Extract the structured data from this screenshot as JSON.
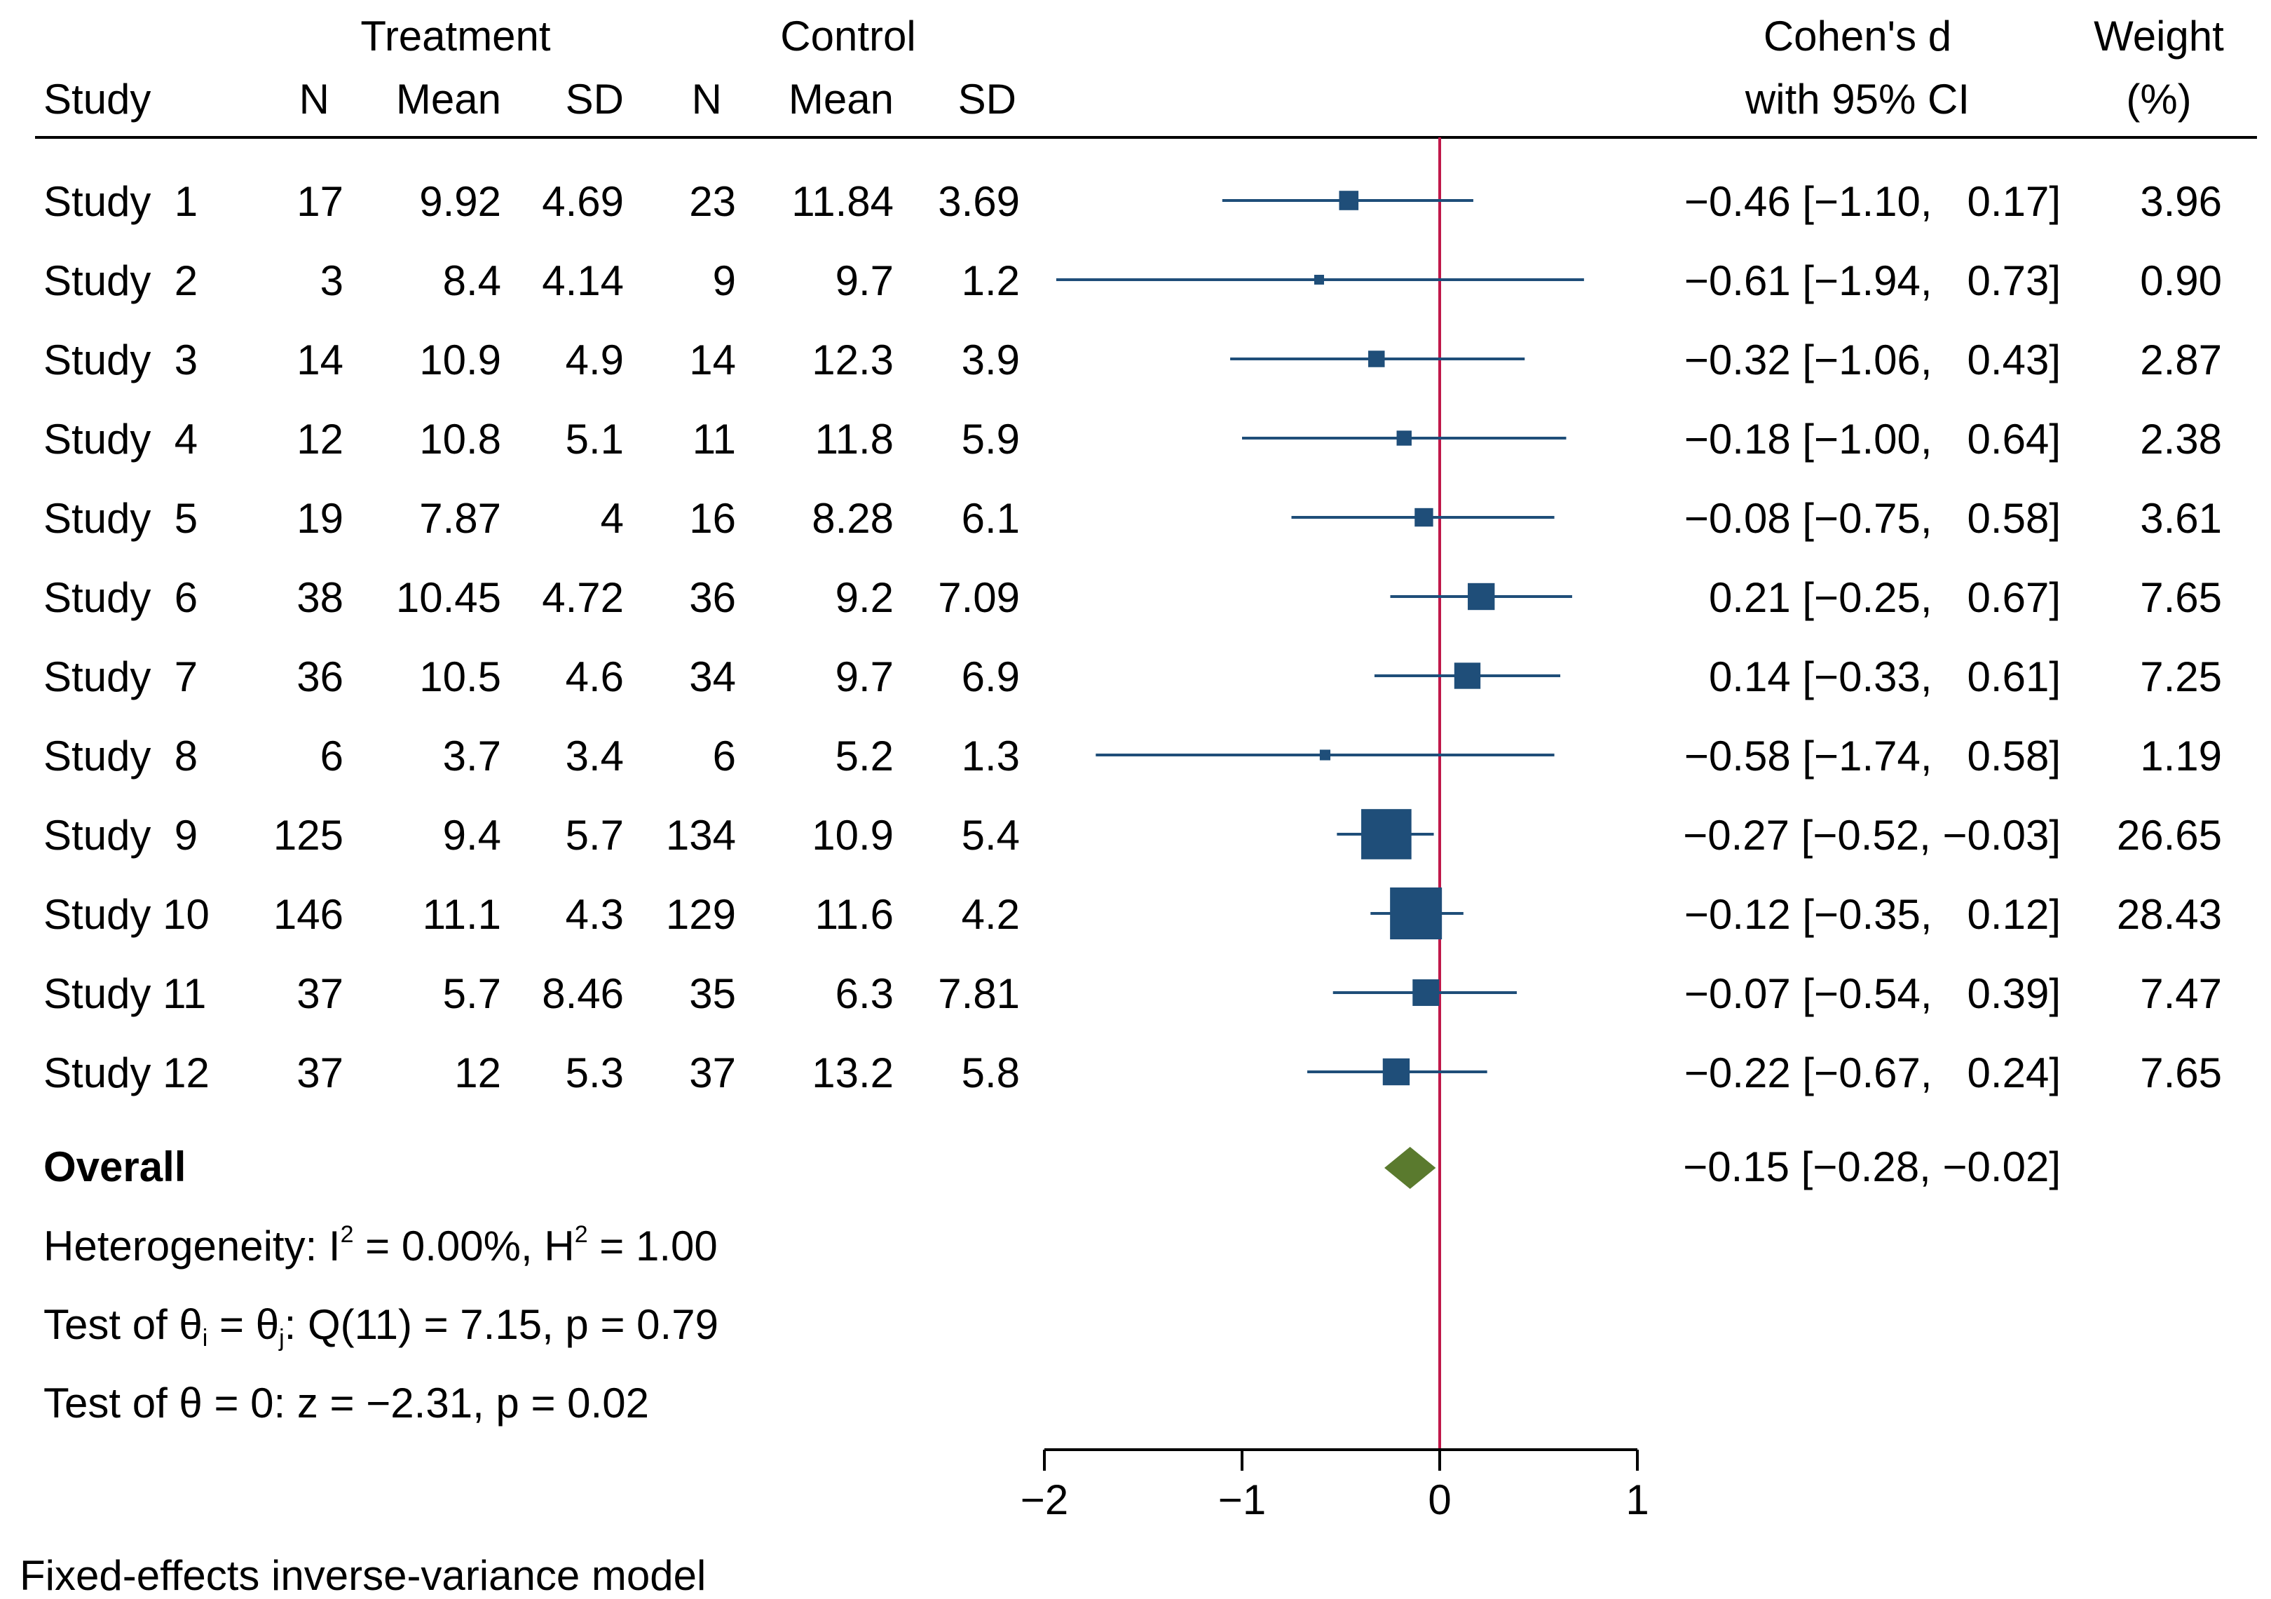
{
  "chart_data": {
    "type": "forest",
    "model_note": "Fixed-effects inverse-variance model",
    "headers": {
      "treatment_group": "Treatment",
      "control_group": "Control",
      "study": "Study",
      "n": "N",
      "mean": "Mean",
      "sd": "SD",
      "effect_line1": "Cohen's d",
      "effect_line2": "with 95% CI",
      "weight_line1": "Weight",
      "weight_line2": "(%)"
    },
    "studies": [
      {
        "label": "Study  1",
        "t_n": "17",
        "t_mean": "9.92",
        "t_sd": "4.69",
        "c_n": "23",
        "c_mean": "11.84",
        "c_sd": "3.69",
        "d": -0.46,
        "lo": -1.1,
        "hi": 0.17,
        "ci_text": "−0.46 [−1.10,   0.17]",
        "weight": 3.96,
        "weight_text": "3.96"
      },
      {
        "label": "Study  2",
        "t_n": "3",
        "t_mean": "8.4",
        "t_sd": "4.14",
        "c_n": "9",
        "c_mean": "9.7",
        "c_sd": "1.2",
        "d": -0.61,
        "lo": -1.94,
        "hi": 0.73,
        "ci_text": "−0.61 [−1.94,   0.73]",
        "weight": 0.9,
        "weight_text": "0.90"
      },
      {
        "label": "Study  3",
        "t_n": "14",
        "t_mean": "10.9",
        "t_sd": "4.9",
        "c_n": "14",
        "c_mean": "12.3",
        "c_sd": "3.9",
        "d": -0.32,
        "lo": -1.06,
        "hi": 0.43,
        "ci_text": "−0.32 [−1.06,   0.43]",
        "weight": 2.87,
        "weight_text": "2.87"
      },
      {
        "label": "Study  4",
        "t_n": "12",
        "t_mean": "10.8",
        "t_sd": "5.1",
        "c_n": "11",
        "c_mean": "11.8",
        "c_sd": "5.9",
        "d": -0.18,
        "lo": -1.0,
        "hi": 0.64,
        "ci_text": "−0.18 [−1.00,   0.64]",
        "weight": 2.38,
        "weight_text": "2.38"
      },
      {
        "label": "Study  5",
        "t_n": "19",
        "t_mean": "7.87",
        "t_sd": "4",
        "c_n": "16",
        "c_mean": "8.28",
        "c_sd": "6.1",
        "d": -0.08,
        "lo": -0.75,
        "hi": 0.58,
        "ci_text": "−0.08 [−0.75,   0.58]",
        "weight": 3.61,
        "weight_text": "3.61"
      },
      {
        "label": "Study  6",
        "t_n": "38",
        "t_mean": "10.45",
        "t_sd": "4.72",
        "c_n": "36",
        "c_mean": "9.2",
        "c_sd": "7.09",
        "d": 0.21,
        "lo": -0.25,
        "hi": 0.67,
        "ci_text": "0.21 [−0.25,   0.67]",
        "weight": 7.65,
        "weight_text": "7.65"
      },
      {
        "label": "Study  7",
        "t_n": "36",
        "t_mean": "10.5",
        "t_sd": "4.6",
        "c_n": "34",
        "c_mean": "9.7",
        "c_sd": "6.9",
        "d": 0.14,
        "lo": -0.33,
        "hi": 0.61,
        "ci_text": "0.14 [−0.33,   0.61]",
        "weight": 7.25,
        "weight_text": "7.25"
      },
      {
        "label": "Study  8",
        "t_n": "6",
        "t_mean": "3.7",
        "t_sd": "3.4",
        "c_n": "6",
        "c_mean": "5.2",
        "c_sd": "1.3",
        "d": -0.58,
        "lo": -1.74,
        "hi": 0.58,
        "ci_text": "−0.58 [−1.74,   0.58]",
        "weight": 1.19,
        "weight_text": "1.19"
      },
      {
        "label": "Study  9",
        "t_n": "125",
        "t_mean": "9.4",
        "t_sd": "5.7",
        "c_n": "134",
        "c_mean": "10.9",
        "c_sd": "5.4",
        "d": -0.27,
        "lo": -0.52,
        "hi": -0.03,
        "ci_text": "−0.27 [−0.52, −0.03]",
        "weight": 26.65,
        "weight_text": "26.65"
      },
      {
        "label": "Study 10",
        "t_n": "146",
        "t_mean": "11.1",
        "t_sd": "4.3",
        "c_n": "129",
        "c_mean": "11.6",
        "c_sd": "4.2",
        "d": -0.12,
        "lo": -0.35,
        "hi": 0.12,
        "ci_text": "−0.12 [−0.35,   0.12]",
        "weight": 28.43,
        "weight_text": "28.43"
      },
      {
        "label": "Study 11",
        "t_n": "37",
        "t_mean": "5.7",
        "t_sd": "8.46",
        "c_n": "35",
        "c_mean": "6.3",
        "c_sd": "7.81",
        "d": -0.07,
        "lo": -0.54,
        "hi": 0.39,
        "ci_text": "−0.07 [−0.54,   0.39]",
        "weight": 7.47,
        "weight_text": "7.47"
      },
      {
        "label": "Study 12",
        "t_n": "37",
        "t_mean": "12",
        "t_sd": "5.3",
        "c_n": "37",
        "c_mean": "13.2",
        "c_sd": "5.8",
        "d": -0.22,
        "lo": -0.67,
        "hi": 0.24,
        "ci_text": "−0.22 [−0.67,   0.24]",
        "weight": 7.65,
        "weight_text": "7.65"
      }
    ],
    "overall": {
      "label": "Overall",
      "d": -0.15,
      "lo": -0.28,
      "hi": -0.02,
      "ci_text": "−0.15 [−0.28, −0.02]"
    },
    "stats": {
      "heterogeneity_prefix": "Heterogeneity: I",
      "i2_sup": "2",
      "i2_value": " = 0.00%, H",
      "h2_sup": "2",
      "h2_value": " = 1.00",
      "q_prefix": "Test of θ",
      "q_sub_i": "i",
      "q_mid": " = θ",
      "q_sub_j": "j",
      "q_value": ": Q(11) = 7.15, p = 0.79",
      "z_test": "Test of θ = 0: z = −2.31, p = 0.02"
    },
    "x_axis": {
      "range": [
        -2,
        1
      ],
      "ticks": [
        -2,
        -1,
        0,
        1
      ],
      "tick_labels": [
        "−2",
        "−1",
        "0",
        "1"
      ],
      "reference_line": 0
    },
    "colors": {
      "marker": "#1f4e79",
      "ci_line": "#1f4e79",
      "overall_diamond": "#5a7a2e",
      "reference_line": "#c0184a",
      "axis": "#000000"
    }
  }
}
